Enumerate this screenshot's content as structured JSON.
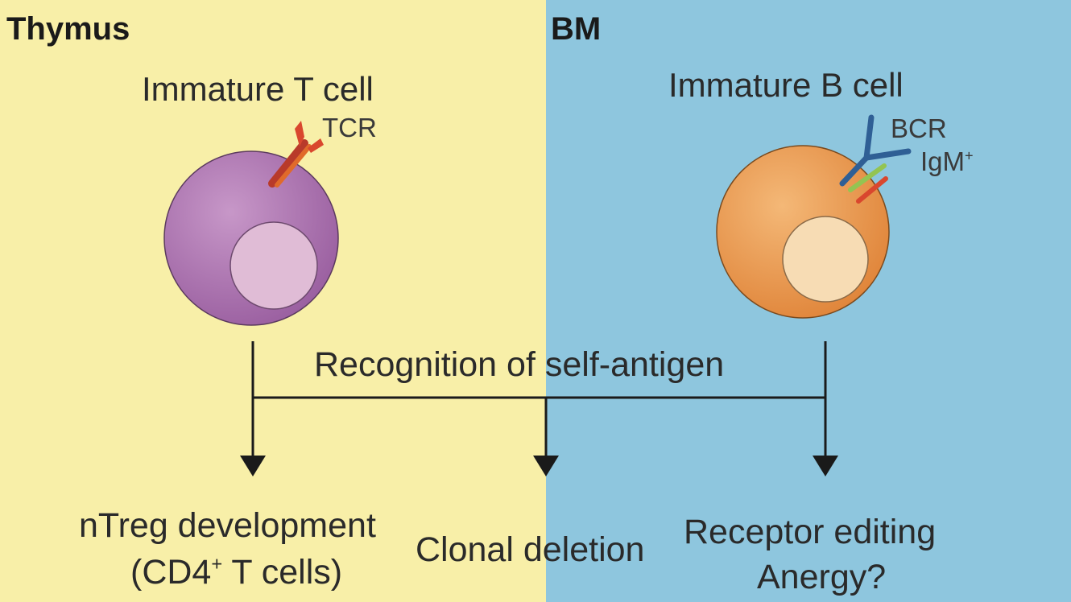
{
  "regions": {
    "left": "Thymus",
    "right": "BM"
  },
  "t_cell": {
    "title": "Immature T cell",
    "receptor": "TCR"
  },
  "b_cell": {
    "title": "Immature B cell",
    "receptor": "BCR",
    "isotype": "IgM",
    "isotype_sup": "+"
  },
  "recognition": "Recognition of self-antigen",
  "outcomes": {
    "left_line1": "nTreg development",
    "left_line2_a": "(CD4",
    "left_line2_sup": "+",
    "left_line2_b": " T cells)",
    "center": "Clonal deletion",
    "right_line1": "Receptor editing",
    "right_line2": "Anergy?"
  },
  "colors": {
    "thymus_bg": "#f8efa8",
    "bm_bg": "#8ec6de",
    "t_cell": "#a266a8",
    "t_nucleus": "#e0bcd6",
    "b_cell": "#e98e3f",
    "b_nucleus": "#f7dcb4",
    "tcr": "#d9472e",
    "bcr": "#2f5f95",
    "antigen_green": "#93c452"
  }
}
